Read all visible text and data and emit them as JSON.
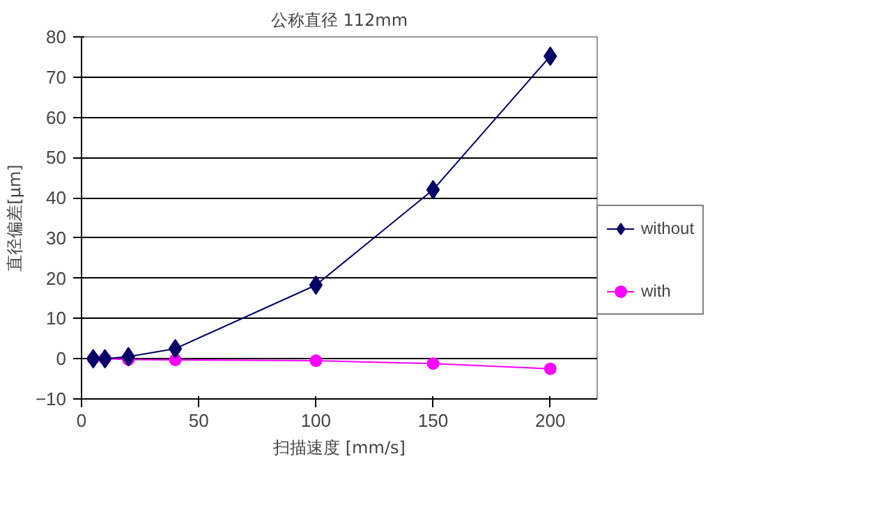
{
  "chart_data": {
    "type": "line",
    "title": "公称直径 112mm",
    "xlabel": "扫描速度 [mm/s]",
    "ylabel": "直径偏差[µm]",
    "xlim": [
      0,
      220
    ],
    "xticks": [
      0,
      50,
      100,
      150,
      200
    ],
    "ylim": [
      -10,
      80
    ],
    "yticks": [
      -10,
      0,
      10,
      20,
      30,
      40,
      50,
      60,
      70,
      80
    ],
    "grid": "y",
    "legend": "right",
    "series": [
      {
        "name": "without",
        "color": "#000066",
        "marker": "diamond",
        "x": [
          5,
          10,
          20,
          40,
          100,
          150,
          200
        ],
        "values": [
          0,
          0,
          0.5,
          2.5,
          18.3,
          42,
          75.2
        ]
      },
      {
        "name": "with",
        "color": "#ff00ff",
        "marker": "circle",
        "x": [
          5,
          10,
          20,
          40,
          100,
          150,
          200
        ],
        "values": [
          0,
          0,
          -0.2,
          -0.3,
          -0.5,
          -1.2,
          -2.5
        ]
      }
    ]
  }
}
